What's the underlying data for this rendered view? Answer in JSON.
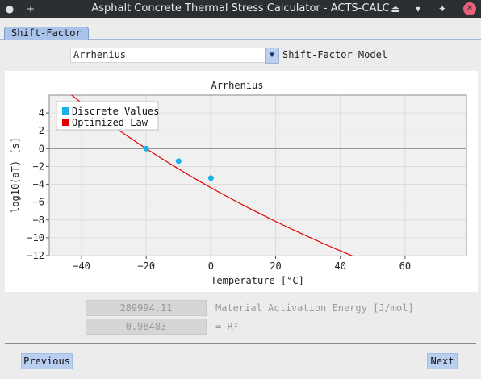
{
  "window": {
    "title": "Asphalt Concrete Thermal Stress Calculator - ACTS-CALC"
  },
  "titlebar_icons": {
    "left": [
      "●",
      "+"
    ],
    "right": [
      "⏏",
      "▾",
      "✦",
      "✕"
    ]
  },
  "tabs": [
    {
      "label": "Shift-Factor"
    }
  ],
  "model": {
    "selected": "Arrhenius",
    "label": "Shift-Factor Model",
    "dropdown_icon": "▼"
  },
  "chart_data": {
    "type": "scatter",
    "title": "Arrhenius",
    "xlabel": "Temperature [°C]",
    "ylabel": "log10(aT) [s]",
    "xlim": [
      -50,
      79
    ],
    "ylim": [
      -12,
      6
    ],
    "x_ticks": [
      -40,
      -20,
      0,
      20,
      40,
      60
    ],
    "y_ticks": [
      4,
      2,
      0,
      -2,
      -4,
      -6,
      -8,
      -10,
      -12
    ],
    "grid": true,
    "legend_position": "top-left",
    "reference_temperature": -20,
    "activation_energy": 289994.11,
    "series": [
      {
        "name": "Discrete Values",
        "kind": "points",
        "color": "#1ab0e8",
        "x": [
          -20,
          -10,
          0
        ],
        "y": [
          0,
          -1.4,
          -3.3
        ]
      },
      {
        "name": "Optimized Law",
        "kind": "line",
        "color": "#e00000",
        "x_range": [
          -50,
          79
        ]
      }
    ]
  },
  "fields": {
    "activation_energy": {
      "value": "289994.11",
      "label": "Material Activation Energy [J/mol]"
    },
    "r_squared": {
      "value": "0.98483",
      "label": "= R²"
    }
  },
  "buttons": {
    "previous": "Previous",
    "next": "Next"
  }
}
